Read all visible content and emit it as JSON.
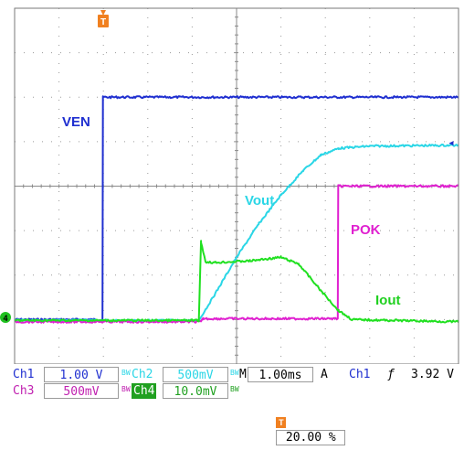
{
  "chart_data": {
    "type": "line",
    "title": "",
    "x_unit": "divisions",
    "y_unit": "divisions",
    "xlim": [
      0,
      10
    ],
    "ylim": [
      -4,
      4
    ],
    "grid": true,
    "series": [
      {
        "name": "VEN",
        "channel": "Ch1",
        "color": "#1f2fd0",
        "points": [
          [
            0,
            -3.0
          ],
          [
            1.98,
            -3.0
          ],
          [
            1.99,
            2.0
          ],
          [
            10,
            2.0
          ]
        ]
      },
      {
        "name": "Vout",
        "channel": "Ch2",
        "color": "#2ad6e6",
        "points": [
          [
            0,
            -3.02
          ],
          [
            4.15,
            -3.02
          ],
          [
            4.5,
            -2.45
          ],
          [
            5.0,
            -1.6
          ],
          [
            5.5,
            -0.85
          ],
          [
            6.0,
            -0.2
          ],
          [
            6.5,
            0.35
          ],
          [
            6.9,
            0.7
          ],
          [
            7.3,
            0.85
          ],
          [
            8.0,
            0.9
          ],
          [
            10,
            0.92
          ]
        ]
      },
      {
        "name": "POK",
        "channel": "Ch3",
        "color": "#e020d0",
        "points": [
          [
            0,
            -3.05
          ],
          [
            4.2,
            -3.05
          ],
          [
            4.25,
            -2.98
          ],
          [
            7.28,
            -2.98
          ],
          [
            7.29,
            0.0
          ],
          [
            10,
            0.0
          ]
        ]
      },
      {
        "name": "Iout",
        "channel": "Ch4",
        "color": "#20e020",
        "points": [
          [
            0,
            -3.02
          ],
          [
            4.15,
            -3.02
          ],
          [
            4.2,
            -1.25
          ],
          [
            4.3,
            -1.7
          ],
          [
            4.5,
            -1.72
          ],
          [
            5.3,
            -1.68
          ],
          [
            6.0,
            -1.6
          ],
          [
            6.4,
            -1.75
          ],
          [
            6.9,
            -2.35
          ],
          [
            7.3,
            -2.8
          ],
          [
            7.6,
            -3.0
          ],
          [
            10,
            -3.05
          ]
        ]
      }
    ],
    "annotations": [
      "VEN",
      "Vout",
      "POK",
      "Iout"
    ]
  },
  "channel_marker": "4",
  "trigger_marker": "T",
  "level_marker": "◂",
  "status": {
    "ch1_label": "Ch1",
    "ch1_scale": "1.00 V",
    "ch2_label": "Ch2",
    "ch2_scale": "500mV",
    "ch3_label": "Ch3",
    "ch3_scale": "500mV",
    "ch4_label": "Ch4",
    "ch4_scale": "10.0mV",
    "bw_mark": "BW",
    "timebase_prefix": "M",
    "timebase": "1.00ms",
    "acq_mode": "A",
    "trigger_source": "Ch1",
    "trigger_slope": "ƒ",
    "trigger_level": "3.92 V",
    "trigger_position": "20.00 %"
  }
}
